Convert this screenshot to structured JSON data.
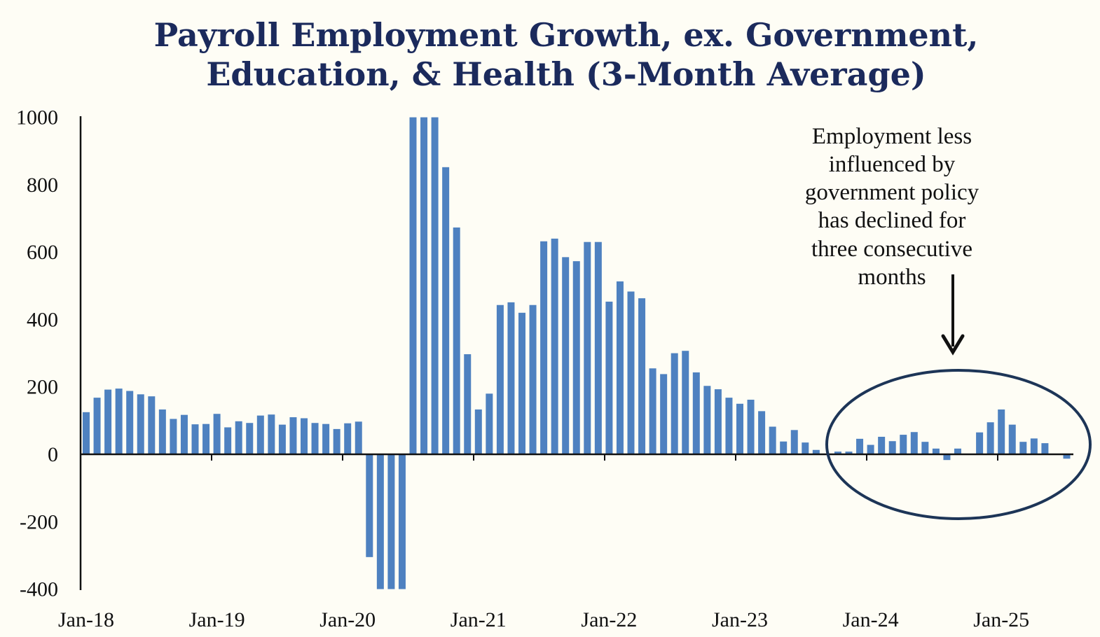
{
  "chart_data": {
    "type": "bar",
    "title": "Payroll Employment Growth, ex. Government, Education, & Health (3-Month Average)",
    "title_lines": [
      "Payroll Employment Growth, ex. Government,",
      "Education, & Health (3-Month Average)"
    ],
    "xlabel": "",
    "ylabel": "",
    "ylim": [
      -400,
      1000
    ],
    "yticks": [
      -400,
      -200,
      0,
      200,
      400,
      600,
      800,
      1000
    ],
    "ytick_labels": [
      "-400",
      "-200",
      "0",
      "200",
      "400",
      "600",
      "800",
      "1000"
    ],
    "grid": false,
    "legend": "none",
    "x_tick_labels": [
      "Jan-18",
      "Jan-19",
      "Jan-20",
      "Jan-21",
      "Jan-22",
      "Jan-23",
      "Jan-24",
      "Jan-25"
    ],
    "x_tick_indices": [
      0,
      12,
      24,
      36,
      48,
      60,
      72,
      84
    ],
    "categories": [
      "Jan-18",
      "Feb-18",
      "Mar-18",
      "Apr-18",
      "May-18",
      "Jun-18",
      "Jul-18",
      "Aug-18",
      "Sep-18",
      "Oct-18",
      "Nov-18",
      "Dec-18",
      "Jan-19",
      "Feb-19",
      "Mar-19",
      "Apr-19",
      "May-19",
      "Jun-19",
      "Jul-19",
      "Aug-19",
      "Sep-19",
      "Oct-19",
      "Nov-19",
      "Dec-19",
      "Jan-20",
      "Feb-20",
      "Mar-20",
      "Apr-20",
      "May-20",
      "Jun-20",
      "Jul-20",
      "Aug-20",
      "Sep-20",
      "Oct-20",
      "Nov-20",
      "Dec-20",
      "Jan-21",
      "Feb-21",
      "Mar-21",
      "Apr-21",
      "May-21",
      "Jun-21",
      "Jul-21",
      "Aug-21",
      "Sep-21",
      "Oct-21",
      "Nov-21",
      "Dec-21",
      "Jan-22",
      "Feb-22",
      "Mar-22",
      "Apr-22",
      "May-22",
      "Jun-22",
      "Jul-22",
      "Aug-22",
      "Sep-22",
      "Oct-22",
      "Nov-22",
      "Dec-22",
      "Jan-23",
      "Feb-23",
      "Mar-23",
      "Apr-23",
      "May-23",
      "Jun-23",
      "Jul-23",
      "Aug-23",
      "Sep-23",
      "Oct-23",
      "Nov-23",
      "Dec-23",
      "Jan-24",
      "Feb-24",
      "Mar-24",
      "Apr-24",
      "May-24",
      "Jun-24",
      "Jul-24",
      "Aug-24",
      "Sep-24",
      "Oct-24",
      "Nov-24",
      "Dec-24",
      "Jan-25",
      "Feb-25",
      "Mar-25",
      "Apr-25",
      "May-25",
      "Jun-25",
      "Jul-25"
    ],
    "values": [
      125,
      168,
      192,
      195,
      188,
      178,
      172,
      133,
      105,
      117,
      89,
      90,
      120,
      80,
      98,
      93,
      115,
      118,
      88,
      110,
      107,
      93,
      90,
      75,
      92,
      97,
      -305,
      -400,
      -400,
      -400,
      1000,
      1000,
      1000,
      852,
      673,
      297,
      133,
      180,
      443,
      451,
      420,
      443,
      632,
      640,
      585,
      573,
      630,
      630,
      453,
      513,
      483,
      463,
      255,
      238,
      300,
      307,
      243,
      203,
      193,
      168,
      150,
      162,
      128,
      82,
      38,
      72,
      35,
      13,
      0,
      8,
      8,
      46,
      28,
      52,
      39,
      58,
      66,
      37,
      17,
      -17,
      17,
      0,
      65,
      95,
      133,
      88,
      37,
      47,
      33,
      0,
      -13
    ],
    "bar_color": "#4e81c0",
    "annotation": {
      "lines": [
        "Employment less",
        "influenced by",
        "government policy",
        "has declined for",
        "three consecutive",
        "months"
      ]
    }
  },
  "colors": {
    "background": "#fefdf5",
    "title": "#1b2a5c",
    "bars": "#4e81c0",
    "axis": "#111111",
    "ellipse": "#1d3557"
  }
}
